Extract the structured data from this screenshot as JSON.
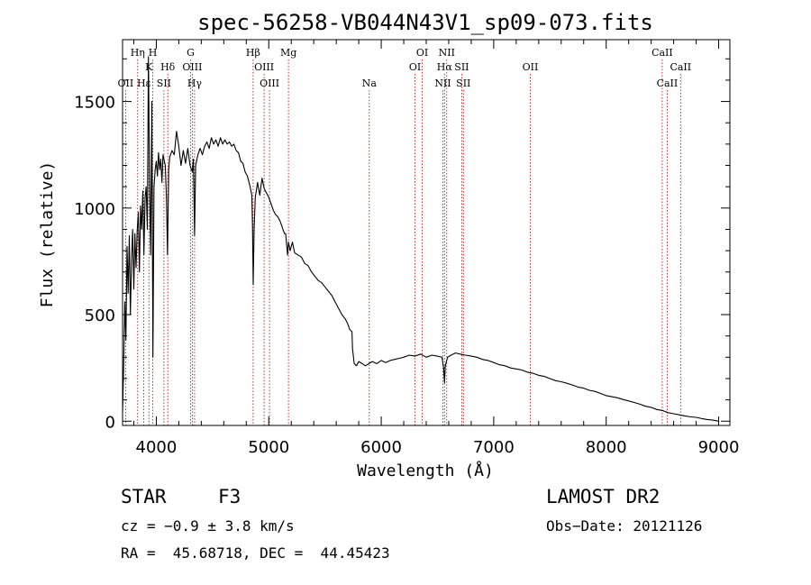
{
  "chart_data": {
    "type": "line",
    "title": "spec-56258-VB044N43V1_sp09-073.fits",
    "xlabel": "Wavelength (Å)",
    "ylabel": "Flux (relative)",
    "xlim": [
      3700,
      9100
    ],
    "ylim": [
      -20,
      1790
    ],
    "xticks": [
      4000,
      5000,
      6000,
      7000,
      8000,
      9000
    ],
    "yticks": [
      0,
      500,
      1000,
      1500
    ],
    "grid": false,
    "series": [
      {
        "points": [
          [
            3700,
            40
          ],
          [
            3710,
            250
          ],
          [
            3720,
            560
          ],
          [
            3730,
            380
          ],
          [
            3740,
            820
          ],
          [
            3750,
            600
          ],
          [
            3760,
            870
          ],
          [
            3770,
            500
          ],
          [
            3780,
            760
          ],
          [
            3790,
            900
          ],
          [
            3800,
            620
          ],
          [
            3810,
            880
          ],
          [
            3820,
            720
          ],
          [
            3830,
            890
          ],
          [
            3840,
            980
          ],
          [
            3850,
            700
          ],
          [
            3860,
            1010
          ],
          [
            3870,
            900
          ],
          [
            3880,
            1080
          ],
          [
            3890,
            780
          ],
          [
            3900,
            1050
          ],
          [
            3910,
            1100
          ],
          [
            3920,
            900
          ],
          [
            3930,
            1710
          ],
          [
            3940,
            1100
          ],
          [
            3950,
            780
          ],
          [
            3960,
            1500
          ],
          [
            3970,
            300
          ],
          [
            3980,
            1100
          ],
          [
            3990,
            1180
          ],
          [
            4000,
            1220
          ],
          [
            4010,
            1150
          ],
          [
            4020,
            1260
          ],
          [
            4030,
            1180
          ],
          [
            4040,
            1230
          ],
          [
            4050,
            1120
          ],
          [
            4060,
            1250
          ],
          [
            4080,
            1200
          ],
          [
            4090,
            1050
          ],
          [
            4100,
            780
          ],
          [
            4110,
            1180
          ],
          [
            4120,
            1240
          ],
          [
            4140,
            1270
          ],
          [
            4160,
            1250
          ],
          [
            4180,
            1360
          ],
          [
            4200,
            1290
          ],
          [
            4220,
            1200
          ],
          [
            4240,
            1270
          ],
          [
            4260,
            1210
          ],
          [
            4280,
            1280
          ],
          [
            4300,
            1200
          ],
          [
            4320,
            1170
          ],
          [
            4330,
            1230
          ],
          [
            4340,
            870
          ],
          [
            4350,
            1200
          ],
          [
            4370,
            1250
          ],
          [
            4390,
            1280
          ],
          [
            4410,
            1250
          ],
          [
            4430,
            1290
          ],
          [
            4450,
            1310
          ],
          [
            4470,
            1280
          ],
          [
            4490,
            1330
          ],
          [
            4510,
            1300
          ],
          [
            4530,
            1320
          ],
          [
            4550,
            1290
          ],
          [
            4570,
            1330
          ],
          [
            4590,
            1300
          ],
          [
            4610,
            1320
          ],
          [
            4630,
            1300
          ],
          [
            4650,
            1310
          ],
          [
            4670,
            1290
          ],
          [
            4690,
            1300
          ],
          [
            4710,
            1270
          ],
          [
            4730,
            1260
          ],
          [
            4750,
            1220
          ],
          [
            4770,
            1210
          ],
          [
            4790,
            1170
          ],
          [
            4810,
            1150
          ],
          [
            4830,
            1110
          ],
          [
            4850,
            1060
          ],
          [
            4855,
            920
          ],
          [
            4862,
            640
          ],
          [
            4870,
            900
          ],
          [
            4880,
            1050
          ],
          [
            4900,
            1120
          ],
          [
            4920,
            1060
          ],
          [
            4940,
            1140
          ],
          [
            4960,
            1090
          ],
          [
            4980,
            1070
          ],
          [
            5000,
            1050
          ],
          [
            5020,
            1020
          ],
          [
            5040,
            990
          ],
          [
            5060,
            970
          ],
          [
            5080,
            960
          ],
          [
            5100,
            940
          ],
          [
            5120,
            910
          ],
          [
            5140,
            880
          ],
          [
            5150,
            880
          ],
          [
            5167,
            780
          ],
          [
            5175,
            840
          ],
          [
            5190,
            800
          ],
          [
            5210,
            840
          ],
          [
            5230,
            790
          ],
          [
            5260,
            780
          ],
          [
            5290,
            770
          ],
          [
            5320,
            740
          ],
          [
            5350,
            730
          ],
          [
            5380,
            700
          ],
          [
            5410,
            680
          ],
          [
            5440,
            660
          ],
          [
            5470,
            650
          ],
          [
            5500,
            630
          ],
          [
            5530,
            610
          ],
          [
            5560,
            590
          ],
          [
            5590,
            560
          ],
          [
            5620,
            530
          ],
          [
            5650,
            500
          ],
          [
            5680,
            480
          ],
          [
            5700,
            460
          ],
          [
            5720,
            430
          ],
          [
            5740,
            420
          ],
          [
            5745,
            340
          ],
          [
            5760,
            270
          ],
          [
            5780,
            260
          ],
          [
            5800,
            280
          ],
          [
            5830,
            270
          ],
          [
            5860,
            260
          ],
          [
            5890,
            270
          ],
          [
            5920,
            280
          ],
          [
            5960,
            270
          ],
          [
            6000,
            285
          ],
          [
            6040,
            275
          ],
          [
            6080,
            285
          ],
          [
            6120,
            290
          ],
          [
            6160,
            295
          ],
          [
            6200,
            300
          ],
          [
            6250,
            310
          ],
          [
            6300,
            305
          ],
          [
            6350,
            315
          ],
          [
            6400,
            300
          ],
          [
            6450,
            310
          ],
          [
            6500,
            305
          ],
          [
            6540,
            300
          ],
          [
            6555,
            250
          ],
          [
            6563,
            180
          ],
          [
            6570,
            260
          ],
          [
            6590,
            300
          ],
          [
            6620,
            310
          ],
          [
            6660,
            320
          ],
          [
            6700,
            315
          ],
          [
            6750,
            310
          ],
          [
            6800,
            305
          ],
          [
            6850,
            300
          ],
          [
            6900,
            290
          ],
          [
            6950,
            285
          ],
          [
            7000,
            275
          ],
          [
            7050,
            265
          ],
          [
            7100,
            260
          ],
          [
            7150,
            250
          ],
          [
            7200,
            245
          ],
          [
            7250,
            240
          ],
          [
            7300,
            230
          ],
          [
            7350,
            225
          ],
          [
            7400,
            215
          ],
          [
            7450,
            210
          ],
          [
            7500,
            200
          ],
          [
            7550,
            190
          ],
          [
            7600,
            185
          ],
          [
            7650,
            178
          ],
          [
            7700,
            170
          ],
          [
            7750,
            160
          ],
          [
            7800,
            155
          ],
          [
            7850,
            145
          ],
          [
            7900,
            140
          ],
          [
            7950,
            130
          ],
          [
            8000,
            120
          ],
          [
            8050,
            115
          ],
          [
            8100,
            110
          ],
          [
            8150,
            102
          ],
          [
            8200,
            95
          ],
          [
            8250,
            88
          ],
          [
            8300,
            80
          ],
          [
            8350,
            70
          ],
          [
            8400,
            65
          ],
          [
            8450,
            55
          ],
          [
            8500,
            50
          ],
          [
            8550,
            40
          ],
          [
            8600,
            35
          ],
          [
            8650,
            30
          ],
          [
            8700,
            25
          ],
          [
            8750,
            20
          ],
          [
            8800,
            18
          ],
          [
            8850,
            12
          ],
          [
            8900,
            8
          ],
          [
            8950,
            5
          ],
          [
            9000,
            0
          ]
        ]
      }
    ],
    "lines": [
      {
        "label": "OII",
        "wave": 3727,
        "row": 3
      },
      {
        "label": "Hη",
        "wave": 3835,
        "row": 1
      },
      {
        "label": "Hε",
        "wave": 3889,
        "row": 3
      },
      {
        "label": "K",
        "wave": 3934,
        "row": 2
      },
      {
        "label": "H",
        "wave": 3968,
        "row": 1
      },
      {
        "label": "SII",
        "wave": 4068,
        "row": 3
      },
      {
        "label": "Hδ",
        "wave": 4102,
        "row": 2
      },
      {
        "label": "G",
        "wave": 4305,
        "row": 1
      },
      {
        "label": "OIII",
        "wave": 4320,
        "row": 2
      },
      {
        "label": "Hγ",
        "wave": 4340,
        "row": 3
      },
      {
        "label": "Hβ",
        "wave": 4861,
        "row": 1
      },
      {
        "label": "OIII",
        "wave": 4959,
        "row": 2
      },
      {
        "label": "OIII",
        "wave": 5007,
        "row": 3
      },
      {
        "label": "Mg",
        "wave": 5175,
        "row": 1
      },
      {
        "label": "Na",
        "wave": 5894,
        "row": 3
      },
      {
        "label": "OI",
        "wave": 6300,
        "row": 2
      },
      {
        "label": "OI",
        "wave": 6364,
        "row": 1
      },
      {
        "label": "NII",
        "wave": 6548,
        "row": 3
      },
      {
        "label": "Hα",
        "wave": 6563,
        "row": 2
      },
      {
        "label": "NII",
        "wave": 6583,
        "row": 1
      },
      {
        "label": "SII",
        "wave": 6716,
        "row": 2
      },
      {
        "label": "SII",
        "wave": 6731,
        "row": 3
      },
      {
        "label": "OII",
        "wave": 7325,
        "row": 2
      },
      {
        "label": "CaII",
        "wave": 8498,
        "row": 1
      },
      {
        "label": "CaII",
        "wave": 8542,
        "row": 3
      },
      {
        "label": "CaII",
        "wave": 8662,
        "row": 2
      }
    ]
  },
  "footer": {
    "object_class": "STAR",
    "subclass": "F3",
    "survey": "LAMOST DR2",
    "cz": "cz = −0.9 ± 3.8 km/s",
    "obs_date": "Obs−Date: 20121126",
    "coords": "RA =  45.68718, DEC =  44.45423"
  },
  "colors": {
    "spectrum": "#000000",
    "line_marker": "#b30000"
  }
}
